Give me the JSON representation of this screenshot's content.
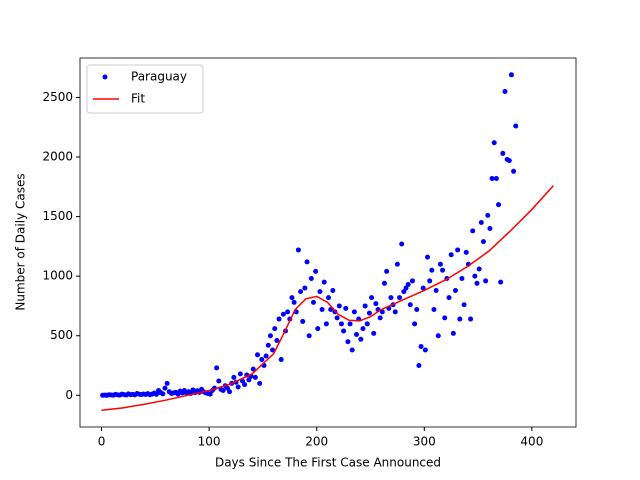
{
  "chart_data": {
    "type": "scatter-fit",
    "xlabel": "Days Since The First Case Announced",
    "ylabel": "Number of Daily Cases",
    "xlim": [
      -20,
      441
    ],
    "ylim": [
      -266,
      2831
    ],
    "xticks": [
      0,
      100,
      200,
      300,
      400
    ],
    "yticks": [
      0,
      500,
      1000,
      1500,
      2000,
      2500
    ],
    "legend": "upper left",
    "series": [
      {
        "name": "Paraguay",
        "color": "#0000ff",
        "kind": "points",
        "x": [
          1,
          3,
          5,
          7,
          9,
          11,
          13,
          15,
          17,
          19,
          21,
          23,
          25,
          27,
          29,
          31,
          33,
          35,
          37,
          39,
          41,
          43,
          45,
          47,
          49,
          51,
          53,
          55,
          57,
          59,
          61,
          63,
          65,
          67,
          69,
          71,
          73,
          75,
          77,
          79,
          81,
          83,
          85,
          87,
          89,
          91,
          93,
          95,
          97,
          99,
          101,
          103,
          105,
          107,
          109,
          111,
          113,
          115,
          117,
          119,
          121,
          123,
          125,
          127,
          129,
          131,
          133,
          135,
          137,
          139,
          141,
          143,
          145,
          147,
          149,
          151,
          153,
          155,
          157,
          159,
          161,
          163,
          165,
          167,
          169,
          171,
          173,
          175,
          177,
          179,
          181,
          183,
          185,
          187,
          189,
          191,
          193,
          195,
          197,
          199,
          201,
          203,
          205,
          207,
          209,
          211,
          213,
          215,
          217,
          219,
          221,
          223,
          225,
          227,
          229,
          231,
          233,
          235,
          237,
          239,
          241,
          243,
          245,
          247,
          249,
          251,
          253,
          255,
          257,
          259,
          261,
          263,
          265,
          267,
          269,
          271,
          273,
          275,
          277,
          279,
          281,
          283,
          285,
          287,
          289,
          291,
          293,
          295,
          297,
          299,
          301,
          303,
          305,
          307,
          309,
          311,
          313,
          315,
          317,
          319,
          321,
          323,
          325,
          327,
          329,
          331,
          333,
          335,
          337,
          339,
          341,
          343,
          345,
          347,
          349,
          351,
          353,
          355,
          357,
          359,
          361,
          363,
          365,
          367,
          369,
          371,
          373,
          375,
          377,
          379,
          381,
          383,
          385
        ],
        "values": [
          0,
          2,
          0,
          5,
          3,
          1,
          8,
          4,
          2,
          10,
          6,
          3,
          12,
          5,
          8,
          4,
          15,
          9,
          6,
          11,
          7,
          14,
          5,
          10,
          18,
          8,
          40,
          22,
          12,
          60,
          100,
          30,
          15,
          20,
          25,
          10,
          35,
          20,
          40,
          18,
          30,
          15,
          45,
          22,
          38,
          25,
          50,
          30,
          20,
          15,
          10,
          40,
          60,
          230,
          120,
          50,
          40,
          80,
          60,
          30,
          100,
          150,
          110,
          70,
          180,
          120,
          90,
          170,
          130,
          160,
          220,
          150,
          340,
          100,
          300,
          250,
          330,
          420,
          500,
          380,
          560,
          460,
          640,
          300,
          680,
          540,
          700,
          640,
          820,
          780,
          700,
          1220,
          870,
          620,
          900,
          1120,
          500,
          980,
          780,
          1040,
          560,
          870,
          720,
          950,
          600,
          820,
          720,
          880,
          700,
          650,
          750,
          600,
          540,
          730,
          450,
          600,
          380,
          700,
          510,
          640,
          470,
          560,
          750,
          600,
          690,
          820,
          520,
          770,
          720,
          650,
          700,
          940,
          1040,
          730,
          820,
          760,
          700,
          1100,
          820,
          1270,
          870,
          900,
          930,
          760,
          960,
          600,
          720,
          250,
          410,
          900,
          380,
          1160,
          960,
          1050,
          720,
          880,
          500,
          1100,
          1050,
          650,
          980,
          820,
          1180,
          520,
          880,
          1220,
          640,
          980,
          760,
          1200,
          1100,
          640,
          1380,
          1000,
          940,
          1060,
          1450,
          1290,
          960,
          1510,
          1400,
          1820,
          2120,
          1820,
          1600,
          950,
          2030,
          2550,
          1980,
          1970,
          2690,
          1880,
          2260
        ]
      },
      {
        "name": "Fit",
        "color": "#ff0000",
        "kind": "line",
        "x": [
          0,
          20,
          40,
          60,
          80,
          100,
          120,
          140,
          160,
          170,
          180,
          190,
          200,
          210,
          220,
          230,
          240,
          250,
          260,
          280,
          300,
          320,
          340,
          360,
          380,
          400,
          420
        ],
        "values": [
          -125,
          -105,
          -75,
          -40,
          0,
          40,
          95,
          180,
          350,
          530,
          720,
          810,
          830,
          780,
          680,
          630,
          625,
          660,
          720,
          800,
          880,
          970,
          1080,
          1210,
          1380,
          1560,
          1760
        ]
      }
    ]
  }
}
